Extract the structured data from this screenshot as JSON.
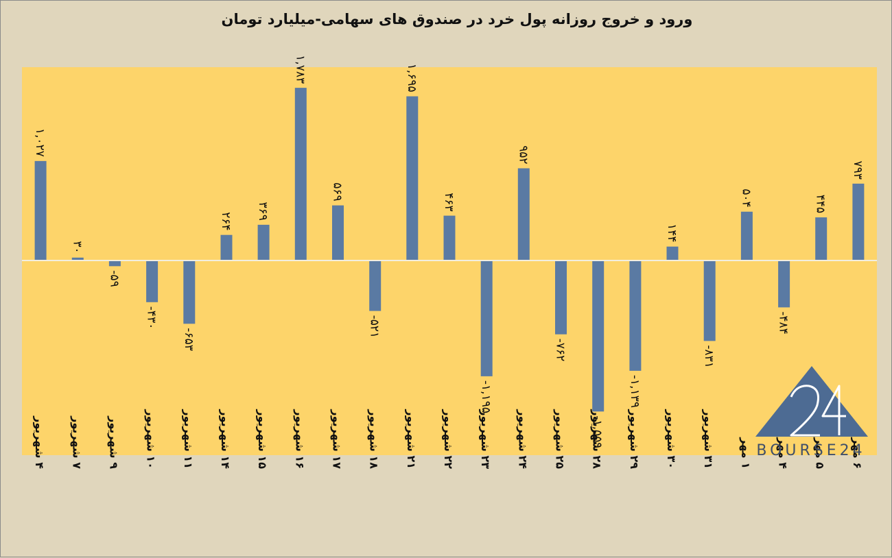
{
  "chart_data": {
    "type": "bar",
    "title": "ورود و خروج روزانه پول خرد در صندوق های سهامی-میلیارد تومان",
    "categories": [
      "۴ شهریور",
      "۷ شهریور",
      "۹ شهریور",
      "۱۰ شهریور",
      "۱۱ شهریور",
      "۱۴ شهریور",
      "۱۵ شهریور",
      "۱۶ شهریور",
      "۱۷ شهریور",
      "۱۸ شهریور",
      "۲۱ شهریور",
      "۲۲ شهریور",
      "۲۳ شهریور",
      "۲۴ شهریور",
      "۲۵ شهریور",
      "۲۸ شهریور",
      "۲۹ شهریور",
      "۳۰ شهریور",
      "۳۱ شهریور",
      "۱ مهر",
      "۴ مهر",
      "۵ مهر",
      "۶ مهر"
    ],
    "values": [
      1027,
      30,
      -59,
      -430,
      -653,
      264,
      369,
      1783,
      569,
      -521,
      1695,
      463,
      -1195,
      952,
      -762,
      -1559,
      -1139,
      144,
      -831,
      504,
      -484,
      445,
      793
    ],
    "data_labels": [
      "۱,۰۲۷",
      "۳۰",
      "-۵۹",
      "-۴۳۰",
      "-۶۵۳",
      "۲۶۴",
      "۳۶۹",
      "۱,۷۸۳",
      "۵۶۹",
      "-۵۲۱",
      "۱,۶۹۵",
      "۴۶۳",
      "-۱,۱۹۵",
      "۹۵۲",
      "-۷۶۲",
      "-۱,۵۵۹",
      "-۱,۱۳۹",
      "۱۴۴",
      "-۸۳۱",
      "۵۰۴",
      "-۴۸۴",
      "۴۴۵",
      "۷۹۳"
    ],
    "xlabel": "",
    "ylabel": "",
    "ylim": [
      -2000,
      2000
    ],
    "grid": false,
    "legend": "none",
    "colors": {
      "bar": "#5a7aa3",
      "plot_background": "#fdd46a",
      "page_background": "#e0d6bc",
      "zero_line": "#f3eedf",
      "logo": "#4d6b93"
    }
  },
  "watermark": {
    "brand": "BOURSE24",
    "number": "24",
    "icon": "triangle-logo-icon"
  }
}
